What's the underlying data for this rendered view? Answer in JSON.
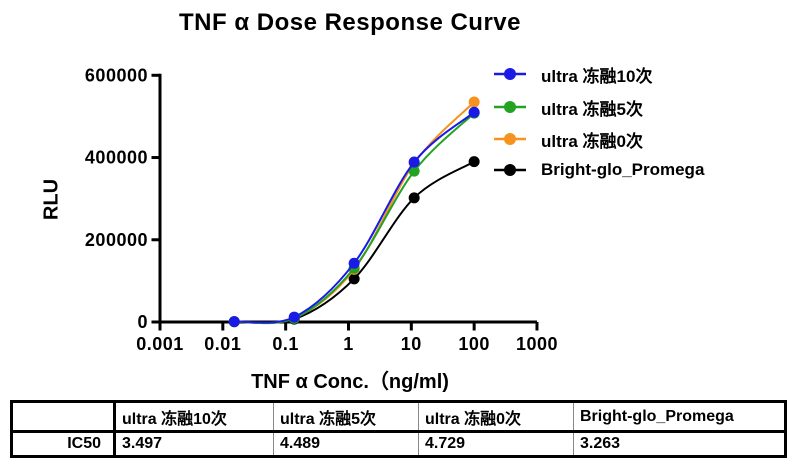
{
  "title": "TNF α Dose Response Curve",
  "chart_data": {
    "type": "line",
    "title": "TNF α Dose Response Curve",
    "xlabel": "TNF α Conc.（ng/ml)",
    "ylabel": "RLU",
    "x_scale": "log10",
    "xlim": [
      0.001,
      1000
    ],
    "ylim": [
      0,
      600000
    ],
    "grid": false,
    "legend_position": "top-right",
    "xticks": [
      "0.001",
      "0.01",
      "0.1",
      "1",
      "10",
      "100",
      "1000"
    ],
    "yticks": [
      "0",
      "200000",
      "400000",
      "600000"
    ],
    "x": [
      0.0152,
      0.137,
      1.23,
      11.1,
      100
    ],
    "series": [
      {
        "name": "ultra 冻融10次",
        "color": "#1A1AE6",
        "values": [
          1000,
          12000,
          143000,
          389000,
          510000
        ]
      },
      {
        "name": "ultra 冻融5次",
        "color": "#22A322",
        "values": [
          800,
          9000,
          131000,
          367000,
          508000
        ]
      },
      {
        "name": "ultra 冻融0次",
        "color": "#F6921E",
        "values": [
          800,
          9500,
          128000,
          386000,
          535000
        ]
      },
      {
        "name": "Bright-glo_Promega",
        "color": "#000000",
        "values": [
          700,
          7000,
          105000,
          302000,
          390000
        ]
      }
    ]
  },
  "table": {
    "row_label": "IC50",
    "columns": [
      "ultra 冻融10次",
      "ultra 冻融5次",
      "ultra 冻融0次",
      "Bright-glo_Promega"
    ],
    "values": [
      "3.497",
      "4.489",
      "4.729",
      "3.263"
    ]
  }
}
